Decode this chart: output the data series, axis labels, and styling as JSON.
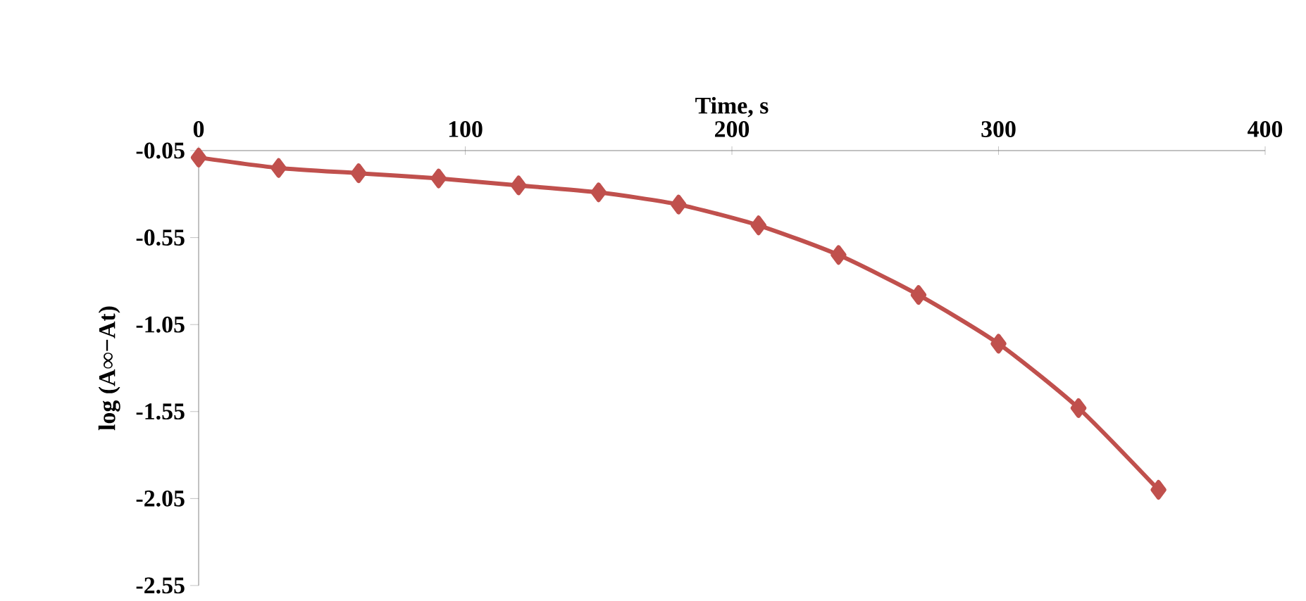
{
  "chart_data": {
    "type": "line",
    "xlabel": "Time, s",
    "ylabel": "log (A∞−At)",
    "x": [
      0,
      30,
      60,
      90,
      120,
      150,
      180,
      210,
      240,
      270,
      300,
      330,
      360
    ],
    "series": [
      {
        "color": "#c0504d",
        "values": [
          -0.09,
          -0.15,
          -0.18,
          -0.21,
          -0.25,
          -0.29,
          -0.36,
          -0.48,
          -0.65,
          -0.88,
          -1.16,
          -1.53,
          -2.0
        ]
      }
    ],
    "xlim": [
      0,
      400
    ],
    "xticks": [
      0,
      100,
      200,
      300,
      400
    ],
    "ylim": [
      -2.55,
      -0.05
    ],
    "yticks": [
      -2.55,
      -2.05,
      -1.55,
      -1.05,
      -0.55,
      -0.05
    ],
    "grid": false,
    "marker": "diamond",
    "line_style": "solid"
  }
}
